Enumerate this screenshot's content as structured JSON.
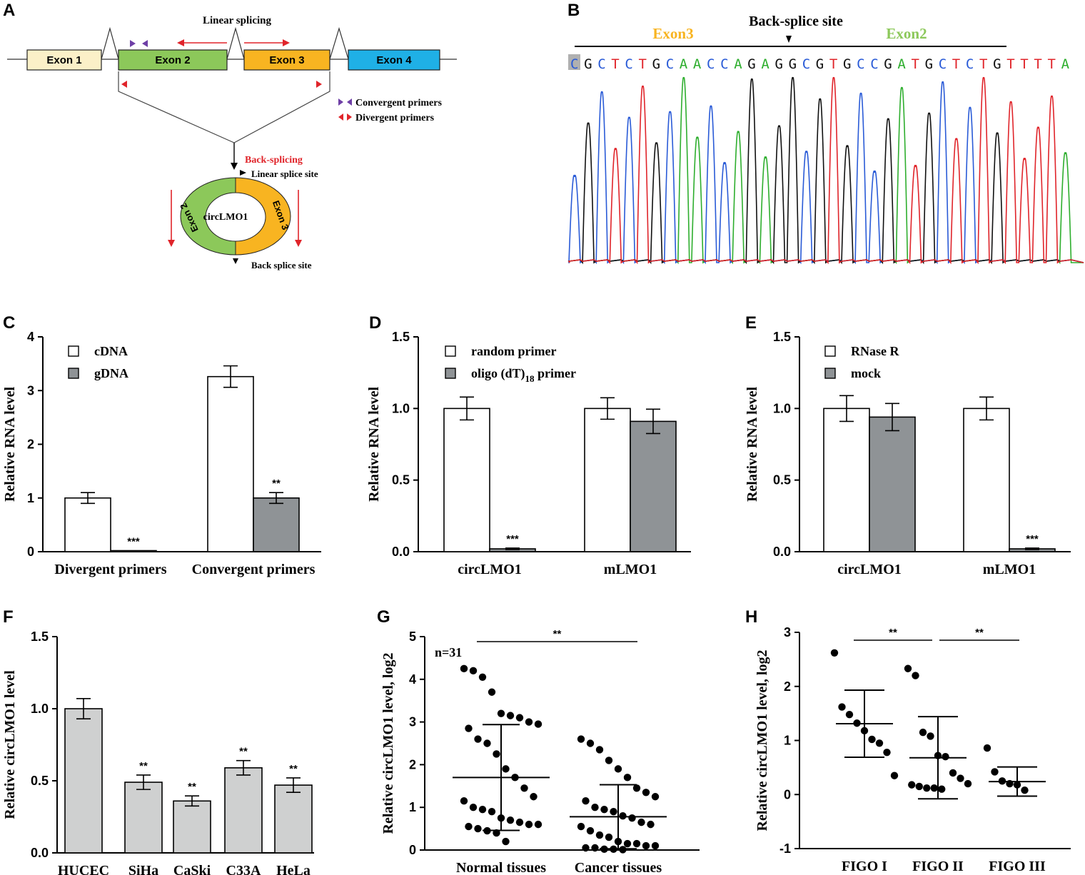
{
  "colors": {
    "exon1": "#fbf0c8",
    "exon2": "#8cc85a",
    "exon3": "#f8b421",
    "exon4": "#1fb0e6",
    "red": "#e0242a",
    "purple": "#6e3fa6",
    "bar_white": "#ffffff",
    "bar_dark": "#8f9396",
    "bar_light": "#cfd0d0",
    "seq_A": "#2eae2e",
    "seq_C": "#2a5bd7",
    "seq_G": "#111111",
    "seq_T": "#e0242a",
    "exon3_label": "#f8b421",
    "exon2_label": "#8cc85a"
  },
  "panel_a": {
    "letter": "A",
    "exons": [
      "Exon 1",
      "Exon 2",
      "Exon 3",
      "Exon 4"
    ],
    "linear_splicing": "Linear splicing",
    "legend": [
      "Convergent primers",
      "Divergent primers"
    ],
    "back_splicing": "Back-splicing",
    "linear_splice_site": "Linear splice site",
    "back_splice_site": "Back splice site",
    "circ_name": "circLMO1",
    "circ_exon2": "Exon 2",
    "circ_exon3": "Exon 3"
  },
  "panel_b": {
    "letter": "B",
    "site_label": "Back-splice site",
    "exon3": "Exon3",
    "exon2": "Exon2",
    "sequence": "CGCTCTGCAACCAGAGGCGTGCCGATGCTCTGTTTTA"
  },
  "chart_data": [
    {
      "id": "C",
      "type": "bar",
      "ylabel": "Relative RNA level",
      "ylim": [
        0,
        4
      ],
      "yticks": [
        "0",
        "1",
        "2",
        "3",
        "4"
      ],
      "categories": [
        "Divergent primers",
        "Convergent primers"
      ],
      "series": [
        {
          "name": "cDNA",
          "values": [
            1.0,
            3.26
          ],
          "errors": [
            0.1,
            0.2
          ],
          "color": "#ffffff"
        },
        {
          "name": "gDNA",
          "values": [
            0.02,
            1.0
          ],
          "errors": [
            0.0,
            0.1
          ],
          "color": "#8f9396"
        }
      ],
      "annotations": [
        "***",
        "**"
      ]
    },
    {
      "id": "D",
      "type": "bar",
      "ylabel": "Relative RNA level",
      "ylim": [
        0,
        1.5
      ],
      "yticks": [
        "0.0",
        "0.5",
        "1.0",
        "1.5"
      ],
      "categories": [
        "circLMO1",
        "mLMO1"
      ],
      "series": [
        {
          "name": "random primer",
          "values": [
            1.0,
            1.0
          ],
          "errors": [
            0.08,
            0.075
          ],
          "color": "#ffffff"
        },
        {
          "name": "oligo (dT)18 primer",
          "values": [
            0.02,
            0.91
          ],
          "errors": [
            0.005,
            0.085
          ],
          "color": "#8f9396"
        }
      ],
      "legend_labels": [
        "random primer",
        "oligo (dT)",
        "18",
        " primer"
      ],
      "annotations": [
        "***",
        ""
      ]
    },
    {
      "id": "E",
      "type": "bar",
      "ylabel": "Relative RNA level",
      "ylim": [
        0,
        1.5
      ],
      "yticks": [
        "0.0",
        "0.5",
        "1.0",
        "1.5"
      ],
      "categories": [
        "circLMO1",
        "mLMO1"
      ],
      "series": [
        {
          "name": "RNase R",
          "values": [
            1.0,
            1.0
          ],
          "errors": [
            0.09,
            0.08
          ],
          "color": "#ffffff"
        },
        {
          "name": "mock",
          "values": [
            0.94,
            0.02
          ],
          "errors": [
            0.095,
            0.005
          ],
          "color": "#8f9396"
        }
      ],
      "annotations": [
        "",
        "***"
      ]
    },
    {
      "id": "F",
      "type": "bar",
      "ylabel": "Relative circLMO1 level",
      "ylim": [
        0,
        1.5
      ],
      "yticks": [
        "0.0",
        "0.5",
        "1.0",
        "1.5"
      ],
      "categories": [
        "HUCEC",
        "SiHa",
        "CaSki",
        "C33A",
        "HeLa"
      ],
      "series": [
        {
          "name": "circLMO1",
          "values": [
            1.0,
            0.49,
            0.36,
            0.59,
            0.47
          ],
          "errors": [
            0.07,
            0.05,
            0.035,
            0.05,
            0.05
          ],
          "color": "#cfd0d0"
        }
      ],
      "annotations": [
        "",
        "**",
        "**",
        "**",
        "**"
      ]
    },
    {
      "id": "G",
      "type": "scatter",
      "ylabel": "Relative circLMO1 level, log2",
      "ylim": [
        0,
        5
      ],
      "yticks": [
        "0",
        "1",
        "2",
        "3",
        "4",
        "5"
      ],
      "categories": [
        "Normal tissues",
        "Cancer tissues"
      ],
      "n_label": "n=31",
      "sig": "**",
      "groups": [
        {
          "name": "Normal tissues",
          "mean": 1.7,
          "sd": 1.24,
          "points": [
            4.25,
            4.2,
            4.05,
            3.7,
            3.2,
            3.15,
            3.1,
            3.0,
            2.95,
            2.85,
            2.6,
            2.5,
            2.25,
            1.9,
            1.7,
            1.45,
            1.25,
            1.15,
            1.0,
            0.95,
            0.9,
            0.75,
            0.7,
            0.65,
            0.6,
            0.6,
            0.55,
            0.5,
            0.45,
            0.4,
            0.2
          ]
        },
        {
          "name": "Cancer tissues",
          "mean": 0.78,
          "sd": 0.75,
          "points": [
            2.6,
            2.5,
            2.35,
            2.1,
            1.9,
            1.7,
            1.45,
            1.35,
            1.25,
            1.15,
            1.0,
            0.95,
            0.9,
            0.8,
            0.75,
            0.65,
            0.6,
            0.55,
            0.45,
            0.35,
            0.3,
            0.2,
            0.15,
            0.15,
            0.1,
            0.1,
            0.05,
            0.05,
            0.02,
            0.02,
            0.01
          ]
        }
      ]
    },
    {
      "id": "H",
      "type": "scatter",
      "ylabel": "Relative circLMO1 level, log2",
      "ylim": [
        -1,
        3
      ],
      "yticks": [
        "-1",
        "0",
        "1",
        "2",
        "3"
      ],
      "categories": [
        "FIGO I",
        "FIGO II",
        "FIGO III"
      ],
      "sig": [
        "**",
        "**"
      ],
      "groups": [
        {
          "name": "FIGO I",
          "mean": 1.31,
          "sd": 0.62,
          "points": [
            2.62,
            1.62,
            1.48,
            1.32,
            1.18,
            1.02,
            0.95,
            0.78,
            0.35
          ]
        },
        {
          "name": "FIGO II",
          "mean": 0.68,
          "sd": 0.76,
          "points": [
            2.33,
            2.2,
            1.15,
            1.08,
            0.72,
            0.7,
            0.4,
            0.3,
            0.2,
            0.18,
            0.15,
            0.12,
            0.12,
            0.1
          ]
        },
        {
          "name": "FIGO III",
          "mean": 0.24,
          "sd": 0.27,
          "points": [
            0.86,
            0.42,
            0.25,
            0.2,
            0.18,
            0.08
          ]
        }
      ]
    }
  ]
}
